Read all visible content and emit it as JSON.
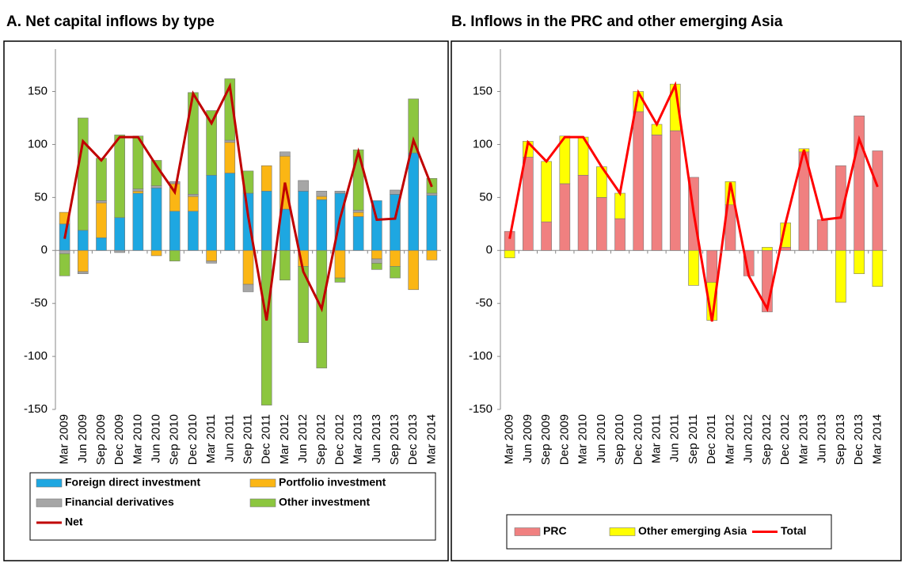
{
  "chart_data": [
    {
      "type": "bar",
      "stacked": true,
      "title": "A. Net capital inflows by type",
      "categories": [
        "Mar 2009",
        "Jun 2009",
        "Sep 2009",
        "Dec 2009",
        "Mar 2010",
        "Jun 2010",
        "Sep 2010",
        "Dec 2010",
        "Mar 2011",
        "Jun 2011",
        "Sep 2011",
        "Dec 2011",
        "Mar 2012",
        "Jun 2012",
        "Sep 2012",
        "Dec 2012",
        "Mar 2013",
        "Jun 2013",
        "Sep 2013",
        "Dec 2013",
        "Mar 2014"
      ],
      "ylim": [
        -150,
        190
      ],
      "yticks": [
        -150,
        -100,
        -50,
        0,
        50,
        100,
        150
      ],
      "grid": false,
      "legend": "bottom",
      "legend_columns": 2,
      "series": [
        {
          "name": "Foreign direct investment",
          "color": "#1ea7e1",
          "values": [
            25,
            19,
            12,
            31,
            54,
            59,
            37,
            37,
            71,
            73,
            54,
            56,
            39,
            56,
            48,
            54,
            32,
            47,
            53,
            92,
            52
          ]
        },
        {
          "name": "Portfolio investment",
          "color": "#fbb614",
          "values": [
            11,
            -20,
            33,
            0,
            2,
            -5,
            26,
            14,
            -10,
            29,
            -32,
            24,
            50,
            -15,
            3,
            -26,
            4,
            -8,
            -15,
            -37,
            -9
          ]
        },
        {
          "name": "Financial derivatives",
          "color": "#a6a6a6",
          "values": [
            -3,
            -2,
            2,
            -2,
            2,
            2,
            2,
            2,
            -2,
            2,
            -7,
            0,
            4,
            10,
            5,
            2,
            2,
            -4,
            4,
            0,
            2
          ]
        },
        {
          "name": "Other investment",
          "color": "#8cc63f",
          "values": [
            -21,
            106,
            40,
            78,
            50,
            24,
            -10,
            96,
            61,
            58,
            21,
            -146,
            -28,
            -72,
            -111,
            -4,
            57,
            -6,
            -11,
            51,
            14
          ]
        },
        {
          "name": "Net",
          "type": "line",
          "color": "#c00000",
          "values": [
            11,
            103,
            85,
            107,
            107,
            80,
            55,
            148,
            120,
            155,
            32,
            -66,
            64,
            -20,
            -55,
            30,
            93,
            29,
            30,
            104,
            60
          ]
        }
      ]
    },
    {
      "type": "bar",
      "stacked": true,
      "title": "B. Inflows in the PRC and other emerging Asia",
      "categories": [
        "Mar 2009",
        "Jun 2009",
        "Sep 2009",
        "Dec 2009",
        "Mar 2010",
        "Jun 2010",
        "Sep 2010",
        "Dec 2010",
        "Mar 2011",
        "Jun 2011",
        "Sep 2011",
        "Dec 2011",
        "Mar 2012",
        "Jun 2012",
        "Sep 2012",
        "Dec 2012",
        "Mar 2013",
        "Jun 2013",
        "Sep 2013",
        "Dec 2013",
        "Mar 2014"
      ],
      "ylim": [
        -150,
        190
      ],
      "yticks": [
        -150,
        -100,
        -50,
        0,
        50,
        100,
        150
      ],
      "grid": false,
      "legend": "bottom",
      "legend_columns": 3,
      "series": [
        {
          "name": "PRC",
          "color": "#f08080",
          "values": [
            18,
            88,
            27,
            63,
            71,
            50,
            30,
            131,
            109,
            113,
            69,
            -30,
            43,
            -24,
            -58,
            3,
            93,
            29,
            80,
            127,
            94
          ]
        },
        {
          "name": "Other emerging Asia",
          "color": "#ffff00",
          "values": [
            -7,
            15,
            57,
            45,
            36,
            29,
            24,
            19,
            10,
            44,
            -33,
            -36,
            22,
            0,
            3,
            23,
            3,
            0,
            -49,
            -22,
            -34
          ]
        },
        {
          "name": "Total",
          "type": "line",
          "color": "#ff0000",
          "values": [
            11,
            102,
            84,
            107,
            107,
            79,
            54,
            149,
            119,
            156,
            36,
            -67,
            64,
            -24,
            -55,
            26,
            95,
            29,
            31,
            105,
            60
          ]
        }
      ]
    }
  ]
}
